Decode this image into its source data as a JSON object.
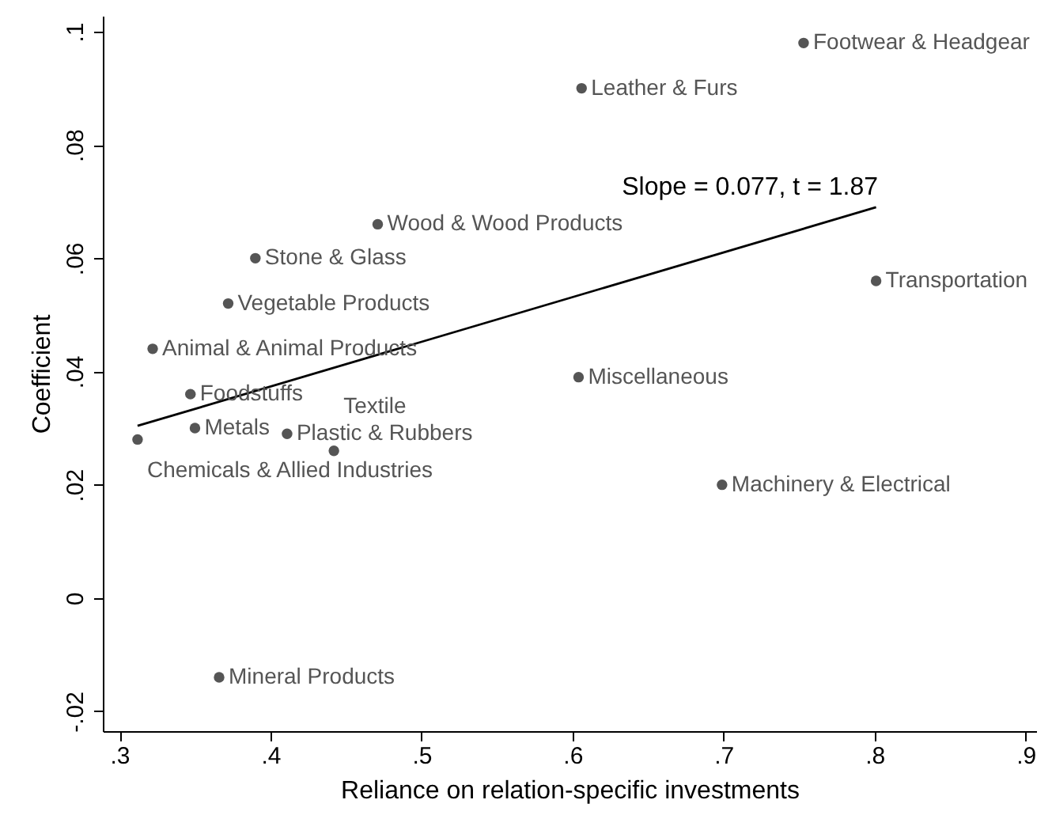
{
  "chart_data": {
    "type": "scatter",
    "xlabel": "Reliance on relation-specific investments",
    "ylabel": "Coefficient",
    "xlim": [
      0.289,
      0.907
    ],
    "ylim": [
      -0.0235,
      0.1028
    ],
    "xticks": [
      {
        "value": 0.3,
        "label": ".3"
      },
      {
        "value": 0.4,
        "label": ".4"
      },
      {
        "value": 0.5,
        "label": ".5"
      },
      {
        "value": 0.6,
        "label": ".6"
      },
      {
        "value": 0.7,
        "label": ".7"
      },
      {
        "value": 0.8,
        "label": ".8"
      },
      {
        "value": 0.9,
        "label": ".9"
      }
    ],
    "yticks": [
      {
        "value": -0.02,
        "label": "-.02"
      },
      {
        "value": 0,
        "label": "0"
      },
      {
        "value": 0.02,
        "label": ".02"
      },
      {
        "value": 0.04,
        "label": ".04"
      },
      {
        "value": 0.06,
        "label": ".06"
      },
      {
        "value": 0.08,
        "label": ".08"
      },
      {
        "value": 0.1,
        "label": ".1"
      }
    ],
    "grid": false,
    "series": [
      {
        "color": "#555555",
        "x": [
          0.753,
          0.606,
          0.471,
          0.39,
          0.372,
          0.322,
          0.347,
          0.35,
          0.411,
          0.312,
          0.442,
          0.801,
          0.604,
          0.699,
          0.366
        ],
        "values": [
          0.098,
          0.09,
          0.066,
          0.06,
          0.052,
          0.044,
          0.036,
          0.03,
          0.029,
          0.028,
          0.026,
          0.056,
          0.039,
          0.02,
          -0.014
        ]
      },
      {
        "type": "line",
        "color": "#000000",
        "x": [
          0.312,
          0.801
        ],
        "values": [
          0.0304,
          0.069
        ]
      }
    ],
    "annotations": [
      {
        "text": "Footwear & Headgear",
        "x": 0.753,
        "y": 0.098
      },
      {
        "text": "Leather & Furs",
        "x": 0.606,
        "y": 0.09
      },
      {
        "text": "Wood & Wood Products",
        "x": 0.471,
        "y": 0.066
      },
      {
        "text": "Stone & Glass",
        "x": 0.39,
        "y": 0.06
      },
      {
        "text": "Vegetable Products",
        "x": 0.372,
        "y": 0.052
      },
      {
        "text": "Animal & Animal Products",
        "x": 0.322,
        "y": 0.044
      },
      {
        "text": "Foodstuffs",
        "x": 0.347,
        "y": 0.036
      },
      {
        "text": "Metals",
        "x": 0.35,
        "y": 0.03
      },
      {
        "text": "Plastic & Rubbers",
        "x": 0.411,
        "y": 0.029
      },
      {
        "text": "Chemicals & Allied Industries",
        "x": 0.312,
        "y": 0.028
      },
      {
        "text": "Textile",
        "x": 0.442,
        "y": 0.026
      },
      {
        "text": "Transportation",
        "x": 0.801,
        "y": 0.056
      },
      {
        "text": "Miscellaneous",
        "x": 0.604,
        "y": 0.039
      },
      {
        "text": "Machinery & Electrical",
        "x": 0.699,
        "y": 0.02
      },
      {
        "text": "Mineral Products",
        "x": 0.366,
        "y": -0.014
      },
      "Slope = 0.077, t = 1.87"
    ]
  }
}
